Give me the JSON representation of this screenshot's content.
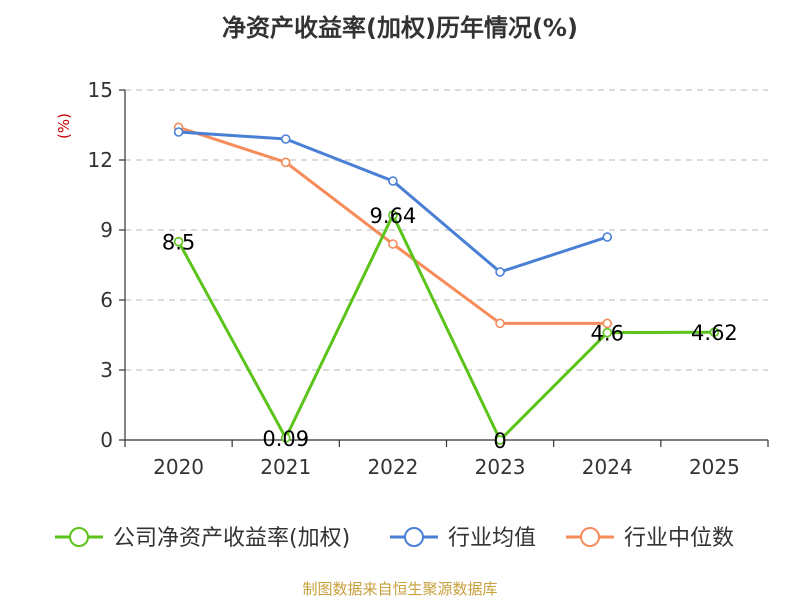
{
  "chart_data": {
    "type": "line",
    "title": "净资产收益率(加权)历年情况(%)",
    "ylabel": "(%)",
    "xlabel": "",
    "ylim": [
      0,
      15
    ],
    "yticks": [
      0,
      3,
      6,
      9,
      12,
      15
    ],
    "categories": [
      "2020",
      "2021",
      "2022",
      "2023",
      "2024",
      "2025"
    ],
    "grid": true,
    "legend_position": "bottom",
    "series": [
      {
        "name": "公司净资产收益率(加权)",
        "color": "#5cc31b",
        "values": [
          8.5,
          0.09,
          9.64,
          0,
          4.6,
          4.62
        ],
        "labels": [
          "8.5",
          "0.09",
          "9.64",
          "0",
          "4.6",
          "4.62"
        ]
      },
      {
        "name": "行业均值",
        "color": "#4a7fd6",
        "values": [
          13.2,
          12.9,
          11.1,
          7.2,
          8.7,
          null
        ]
      },
      {
        "name": "行业中位数",
        "color": "#f58c5a",
        "values": [
          13.4,
          11.9,
          8.4,
          5.0,
          5.0,
          null
        ]
      }
    ]
  },
  "source": "制图数据来自恒生聚源数据库"
}
